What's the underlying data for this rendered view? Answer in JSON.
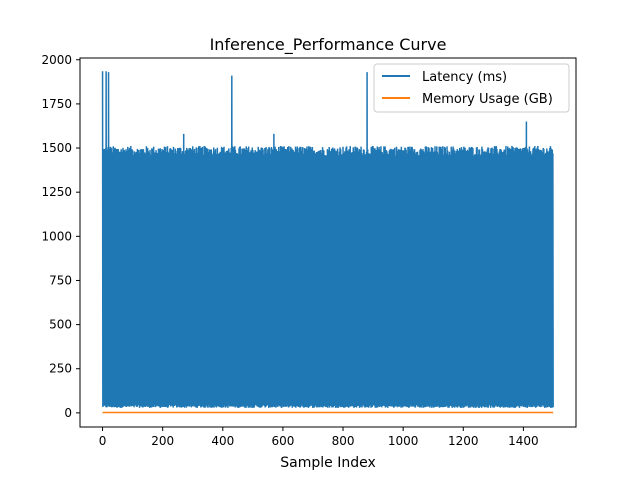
{
  "chart_data": {
    "type": "line",
    "title": "Inference_Performance Curve",
    "xlabel": "Sample Index",
    "ylabel": "",
    "xlim": [
      -75,
      1575
    ],
    "ylim": [
      -80,
      2010
    ],
    "x_ticks": [
      0,
      200,
      400,
      600,
      800,
      1000,
      1200,
      1400
    ],
    "y_ticks": [
      0,
      250,
      500,
      750,
      1000,
      1250,
      1500,
      1750,
      2000
    ],
    "x_tick_labels": [
      "0",
      "200",
      "400",
      "600",
      "800",
      "1000",
      "1200",
      "1400"
    ],
    "y_tick_labels": [
      "0",
      "250",
      "500",
      "750",
      "1000",
      "1250",
      "1500",
      "1750",
      "2000"
    ],
    "grid": false,
    "legend_position": "top-right",
    "n_points": 1500,
    "series": [
      {
        "name": "Latency (ms)",
        "color": "#1f77b4",
        "pattern": "oscillating between low values (~30-45 ms) and high values (~1450-1510 ms) every sample, with spikes near 1930 ms",
        "low_range": [
          28,
          45
        ],
        "high_range": [
          1455,
          1512
        ],
        "spikes": [
          {
            "x": 0,
            "y": 1935
          },
          {
            "x": 5,
            "y": 1930
          },
          {
            "x": 12,
            "y": 1935
          },
          {
            "x": 20,
            "y": 1930
          },
          {
            "x": 115,
            "y": 1540
          },
          {
            "x": 235,
            "y": 1575
          },
          {
            "x": 270,
            "y": 1580
          },
          {
            "x": 325,
            "y": 1585
          },
          {
            "x": 430,
            "y": 1910
          },
          {
            "x": 435,
            "y": 1920
          },
          {
            "x": 445,
            "y": 1600
          },
          {
            "x": 570,
            "y": 1580
          },
          {
            "x": 880,
            "y": 1930
          },
          {
            "x": 1175,
            "y": 1590
          },
          {
            "x": 1275,
            "y": 1580
          },
          {
            "x": 1410,
            "y": 1650
          },
          {
            "x": 1455,
            "y": 1645
          }
        ],
        "dips": [
          {
            "x": 2,
            "y": 240
          },
          {
            "x": 60,
            "y": 700
          },
          {
            "x": 118,
            "y": 540
          },
          {
            "x": 215,
            "y": 150
          },
          {
            "x": 285,
            "y": 80
          },
          {
            "x": 330,
            "y": 800
          },
          {
            "x": 335,
            "y": 690
          },
          {
            "x": 340,
            "y": 50
          },
          {
            "x": 635,
            "y": 140
          },
          {
            "x": 695,
            "y": 40
          },
          {
            "x": 730,
            "y": 490
          },
          {
            "x": 1100,
            "y": 855
          },
          {
            "x": 1300,
            "y": 130
          },
          {
            "x": 1370,
            "y": 180
          }
        ]
      },
      {
        "name": "Memory Usage (GB)",
        "color": "#ff7f0e",
        "pattern": "flat near zero",
        "values_constant": 2
      }
    ]
  }
}
